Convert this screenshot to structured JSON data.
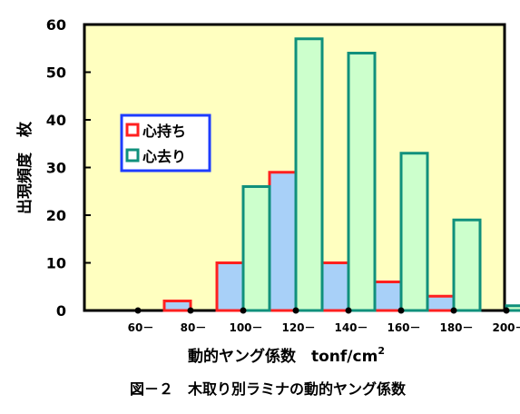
{
  "chart_data": {
    "type": "bar",
    "categories": [
      "60－",
      "80－",
      "100－",
      "120－",
      "140－",
      "160－",
      "180－",
      "200－"
    ],
    "series": [
      {
        "name": "心持ち",
        "values": [
          0,
          2,
          10,
          29,
          10,
          6,
          3,
          0
        ]
      },
      {
        "name": "心去り",
        "values": [
          0,
          0,
          26,
          57,
          54,
          33,
          19,
          1
        ]
      }
    ],
    "ylim": [
      0,
      60
    ],
    "yticks": [
      "0",
      "10",
      "20",
      "30",
      "40",
      "50",
      "60"
    ],
    "ylabel": "出現頻度　枚",
    "xlabel": "動的ヤング係数　tonf/cm",
    "xlabel_sup": "2",
    "caption": "図－２　木取り別ラミナの動的ヤング係数",
    "legend_position": "upper-left",
    "grid": false
  },
  "colors": {
    "plot_bg": "#ffffc0",
    "series1_fill": "#a8d0f8",
    "series1_edge": "#ff2020",
    "series2_fill": "#ccffcc",
    "series2_edge": "#10907c",
    "legend_border": "#1e3cff",
    "frame": "#000000"
  }
}
